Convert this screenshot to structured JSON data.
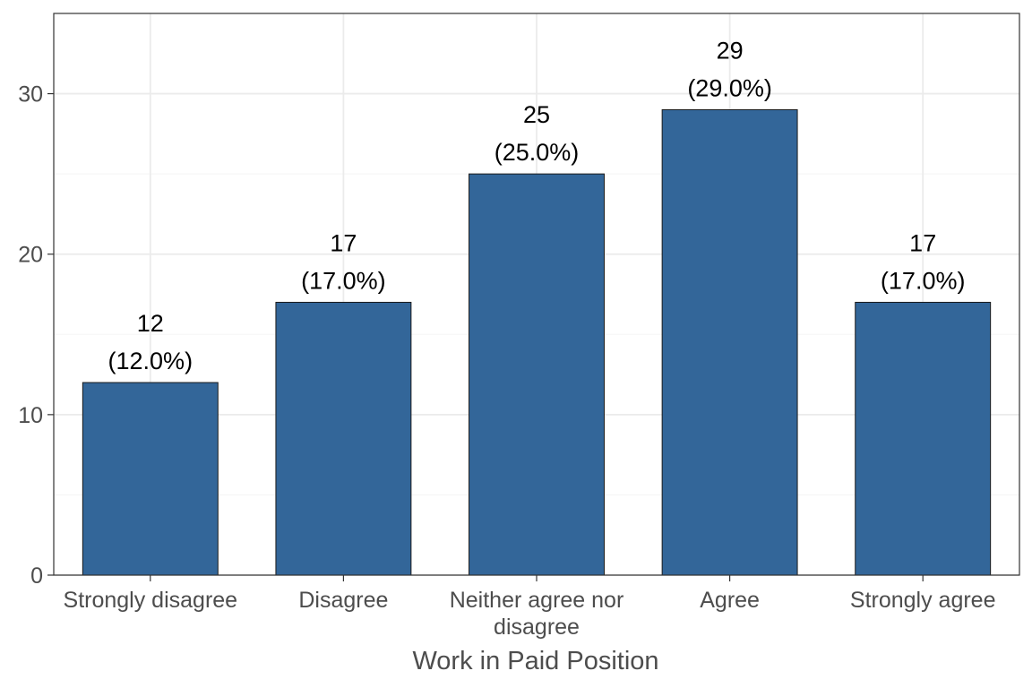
{
  "chart_data": {
    "type": "bar",
    "title": "",
    "xlabel": "Work in Paid Position",
    "ylabel": "",
    "categories": [
      "Strongly disagree",
      "Disagree",
      "Neither agree nor disagree",
      "Agree",
      "Strongly agree"
    ],
    "category_label_lines": [
      [
        "Strongly disagree"
      ],
      [
        "Disagree"
      ],
      [
        "Neither agree nor",
        "disagree"
      ],
      [
        "Agree"
      ],
      [
        "Strongly agree"
      ]
    ],
    "values": [
      12,
      17,
      25,
      29,
      17
    ],
    "value_labels": [
      "12",
      "17",
      "25",
      "29",
      "17"
    ],
    "percent_labels": [
      "(12.0%)",
      "(17.0%)",
      "(25.0%)",
      "(29.0%)",
      "(17.0%)"
    ],
    "ylim": [
      0,
      35
    ],
    "yticks": [
      0,
      10,
      20,
      30
    ],
    "ytick_labels": [
      "0",
      "10",
      "20",
      "30"
    ],
    "grid": true,
    "legend": "none",
    "colors": {
      "bar_fill": "#336699",
      "bar_stroke": "#1a1a1a",
      "grid_major": "#ebebeb",
      "grid_minor": "#f5f5f5",
      "panel_border": "#333333",
      "axis_text": "#4d4d4d",
      "label_text": "#000000"
    }
  }
}
